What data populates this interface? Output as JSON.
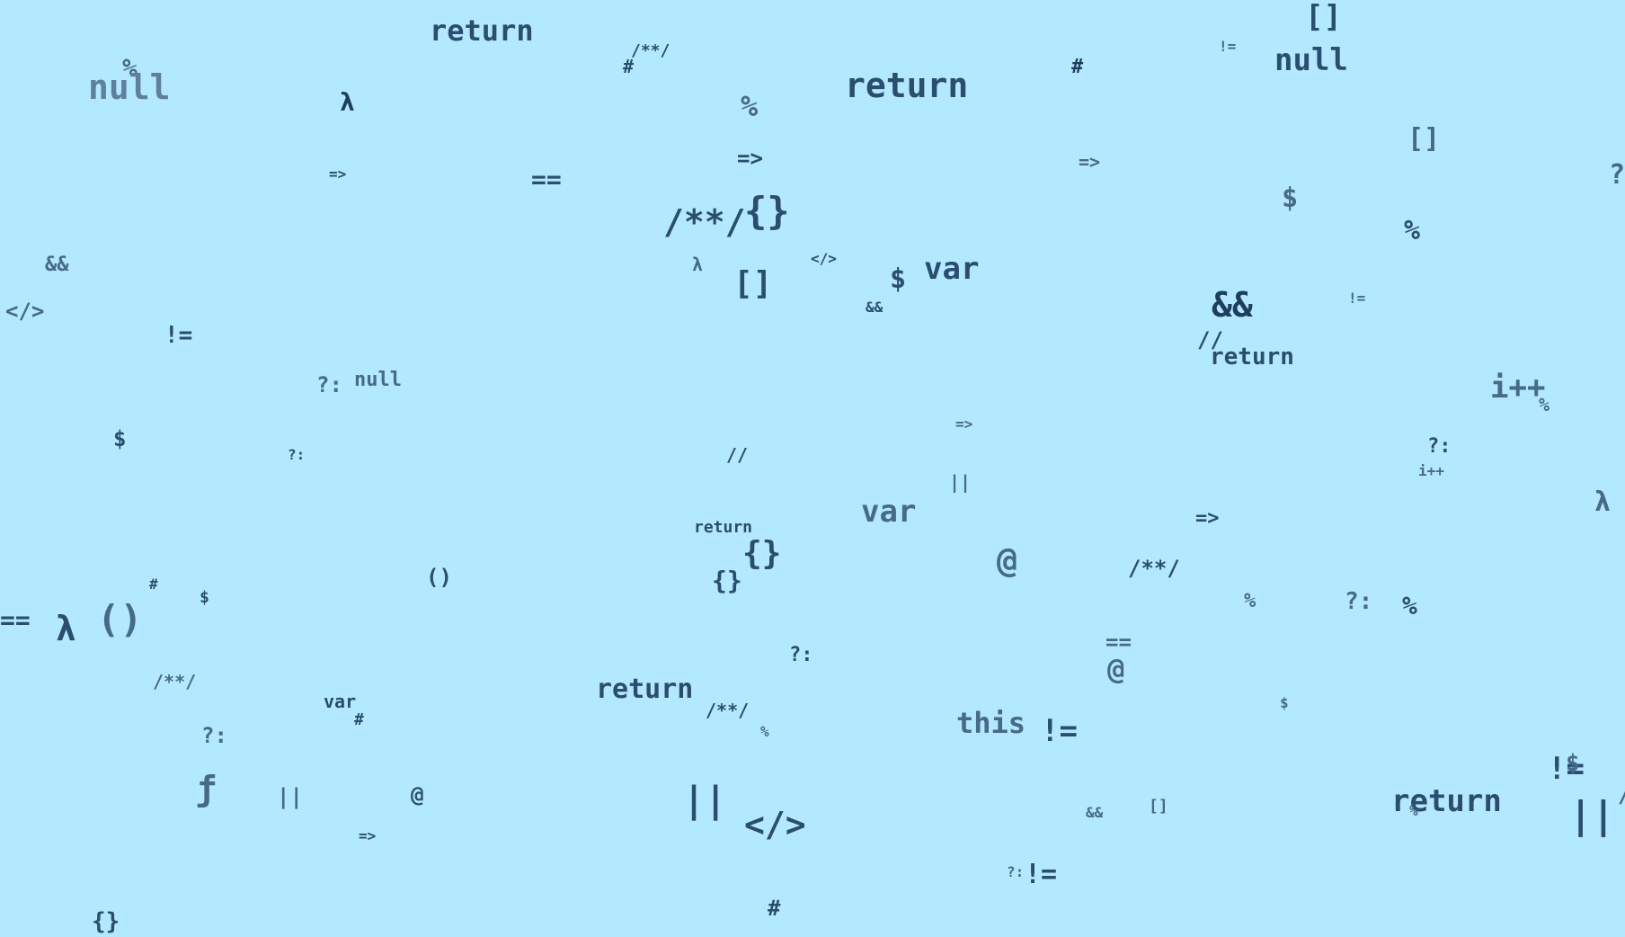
{
  "colors": {
    "background": "#b3e9ff",
    "token_dark": "#1f3d5e",
    "token_mid": "#2b4d6f",
    "token_light": "#47698a",
    "token_pale": "#5f7f9f"
  },
  "tokens": [
    {
      "text": "return"
    },
    {
      "text": "/**/"
    },
    {
      "text": "#"
    },
    {
      "text": "%"
    },
    {
      "text": "null"
    },
    {
      "text": "λ"
    },
    {
      "text": "%"
    },
    {
      "text": "return"
    },
    {
      "text": "#"
    },
    {
      "text": "[]"
    },
    {
      "text": "!="
    },
    {
      "text": "null"
    },
    {
      "text": "[]"
    },
    {
      "text": "=>"
    },
    {
      "text": "=="
    },
    {
      "text": "=>"
    },
    {
      "text": "=>"
    },
    {
      "text": "?"
    },
    {
      "text": "$"
    },
    {
      "text": "/**/"
    },
    {
      "text": "{}"
    },
    {
      "text": "%"
    },
    {
      "text": "&&"
    },
    {
      "text": "λ"
    },
    {
      "text": "</>"
    },
    {
      "text": "[]"
    },
    {
      "text": "$"
    },
    {
      "text": "var"
    },
    {
      "text": "&&"
    },
    {
      "text": "&&"
    },
    {
      "text": "!="
    },
    {
      "text": "</>"
    },
    {
      "text": "!="
    },
    {
      "text": "//"
    },
    {
      "text": "return"
    },
    {
      "text": "?:"
    },
    {
      "text": "null"
    },
    {
      "text": "i++"
    },
    {
      "text": "%"
    },
    {
      "text": "$"
    },
    {
      "text": "?:"
    },
    {
      "text": "//"
    },
    {
      "text": "=>"
    },
    {
      "text": "?:"
    },
    {
      "text": "i++"
    },
    {
      "text": "||"
    },
    {
      "text": "λ"
    },
    {
      "text": "var"
    },
    {
      "text": "=>"
    },
    {
      "text": "return"
    },
    {
      "text": "{}"
    },
    {
      "text": "@"
    },
    {
      "text": "/**/"
    },
    {
      "text": "{}"
    },
    {
      "text": "#"
    },
    {
      "text": "()"
    },
    {
      "text": "$"
    },
    {
      "text": "%"
    },
    {
      "text": "?:"
    },
    {
      "text": "%"
    },
    {
      "text": "=="
    },
    {
      "text": "λ"
    },
    {
      "text": "()"
    },
    {
      "text": "?:"
    },
    {
      "text": "=="
    },
    {
      "text": "/**/"
    },
    {
      "text": "@"
    },
    {
      "text": "var"
    },
    {
      "text": "return"
    },
    {
      "text": "#"
    },
    {
      "text": "/**/"
    },
    {
      "text": "$"
    },
    {
      "text": "?:"
    },
    {
      "text": "%"
    },
    {
      "text": "this"
    },
    {
      "text": "!="
    },
    {
      "text": "!="
    },
    {
      "text": "$"
    },
    {
      "text": "ƒ"
    },
    {
      "text": "||"
    },
    {
      "text": "@"
    },
    {
      "text": "||"
    },
    {
      "text": "</>"
    },
    {
      "text": "return"
    },
    {
      "text": "&&"
    },
    {
      "text": "[]"
    },
    {
      "text": "||"
    },
    {
      "text": "=>"
    },
    {
      "text": "/"
    },
    {
      "text": "%"
    },
    {
      "text": "?:"
    },
    {
      "text": "!="
    },
    {
      "text": "#"
    },
    {
      "text": "{}"
    }
  ]
}
